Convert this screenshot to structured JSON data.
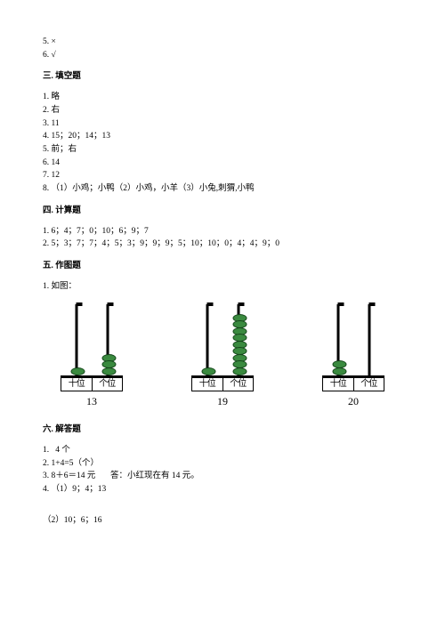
{
  "colors": {
    "text": "#000000",
    "background": "#ffffff",
    "bead_fill": "#3a8a3f",
    "bead_stroke": "#14451a",
    "rod": "#000000"
  },
  "top_lines": [
    "5. ×",
    "6. √"
  ],
  "sections": [
    {
      "title": "三. 填空题",
      "lines": [
        "1. 略",
        "2. 右",
        "3. 11",
        "4. 15；20；14；13",
        "5. 前；右",
        "6. 14",
        "7. 12",
        "8. （1）小鸡；小鸭（2）小鸡，小羊（3）小兔,刺猬,小鸭"
      ]
    },
    {
      "title": "四. 计算题",
      "lines": [
        "1. 6；4；7；0；10；6；9；7",
        "2. 5；3；7；7；4；5；3；9；9；9；5；10；10；0；4；4；9；0"
      ]
    },
    {
      "title": "五. 作图题",
      "intro": "1. 如图：",
      "abacus": {
        "place_left_label": "十位",
        "place_right_label": "个位",
        "items": [
          {
            "tens": 1,
            "ones": 3,
            "number": "13"
          },
          {
            "tens": 1,
            "ones": 9,
            "number": "19"
          },
          {
            "tens": 2,
            "ones": 0,
            "number": "20"
          }
        ]
      }
    },
    {
      "title": "六. 解答题",
      "lines": [
        "1.   4 个",
        "2. 1+4=5（个）",
        "3. 8＋6＝14 元       答：小红现在有 14 元。",
        "4. （1）9；4；13"
      ],
      "trailing": "（2）10；6；16"
    }
  ]
}
